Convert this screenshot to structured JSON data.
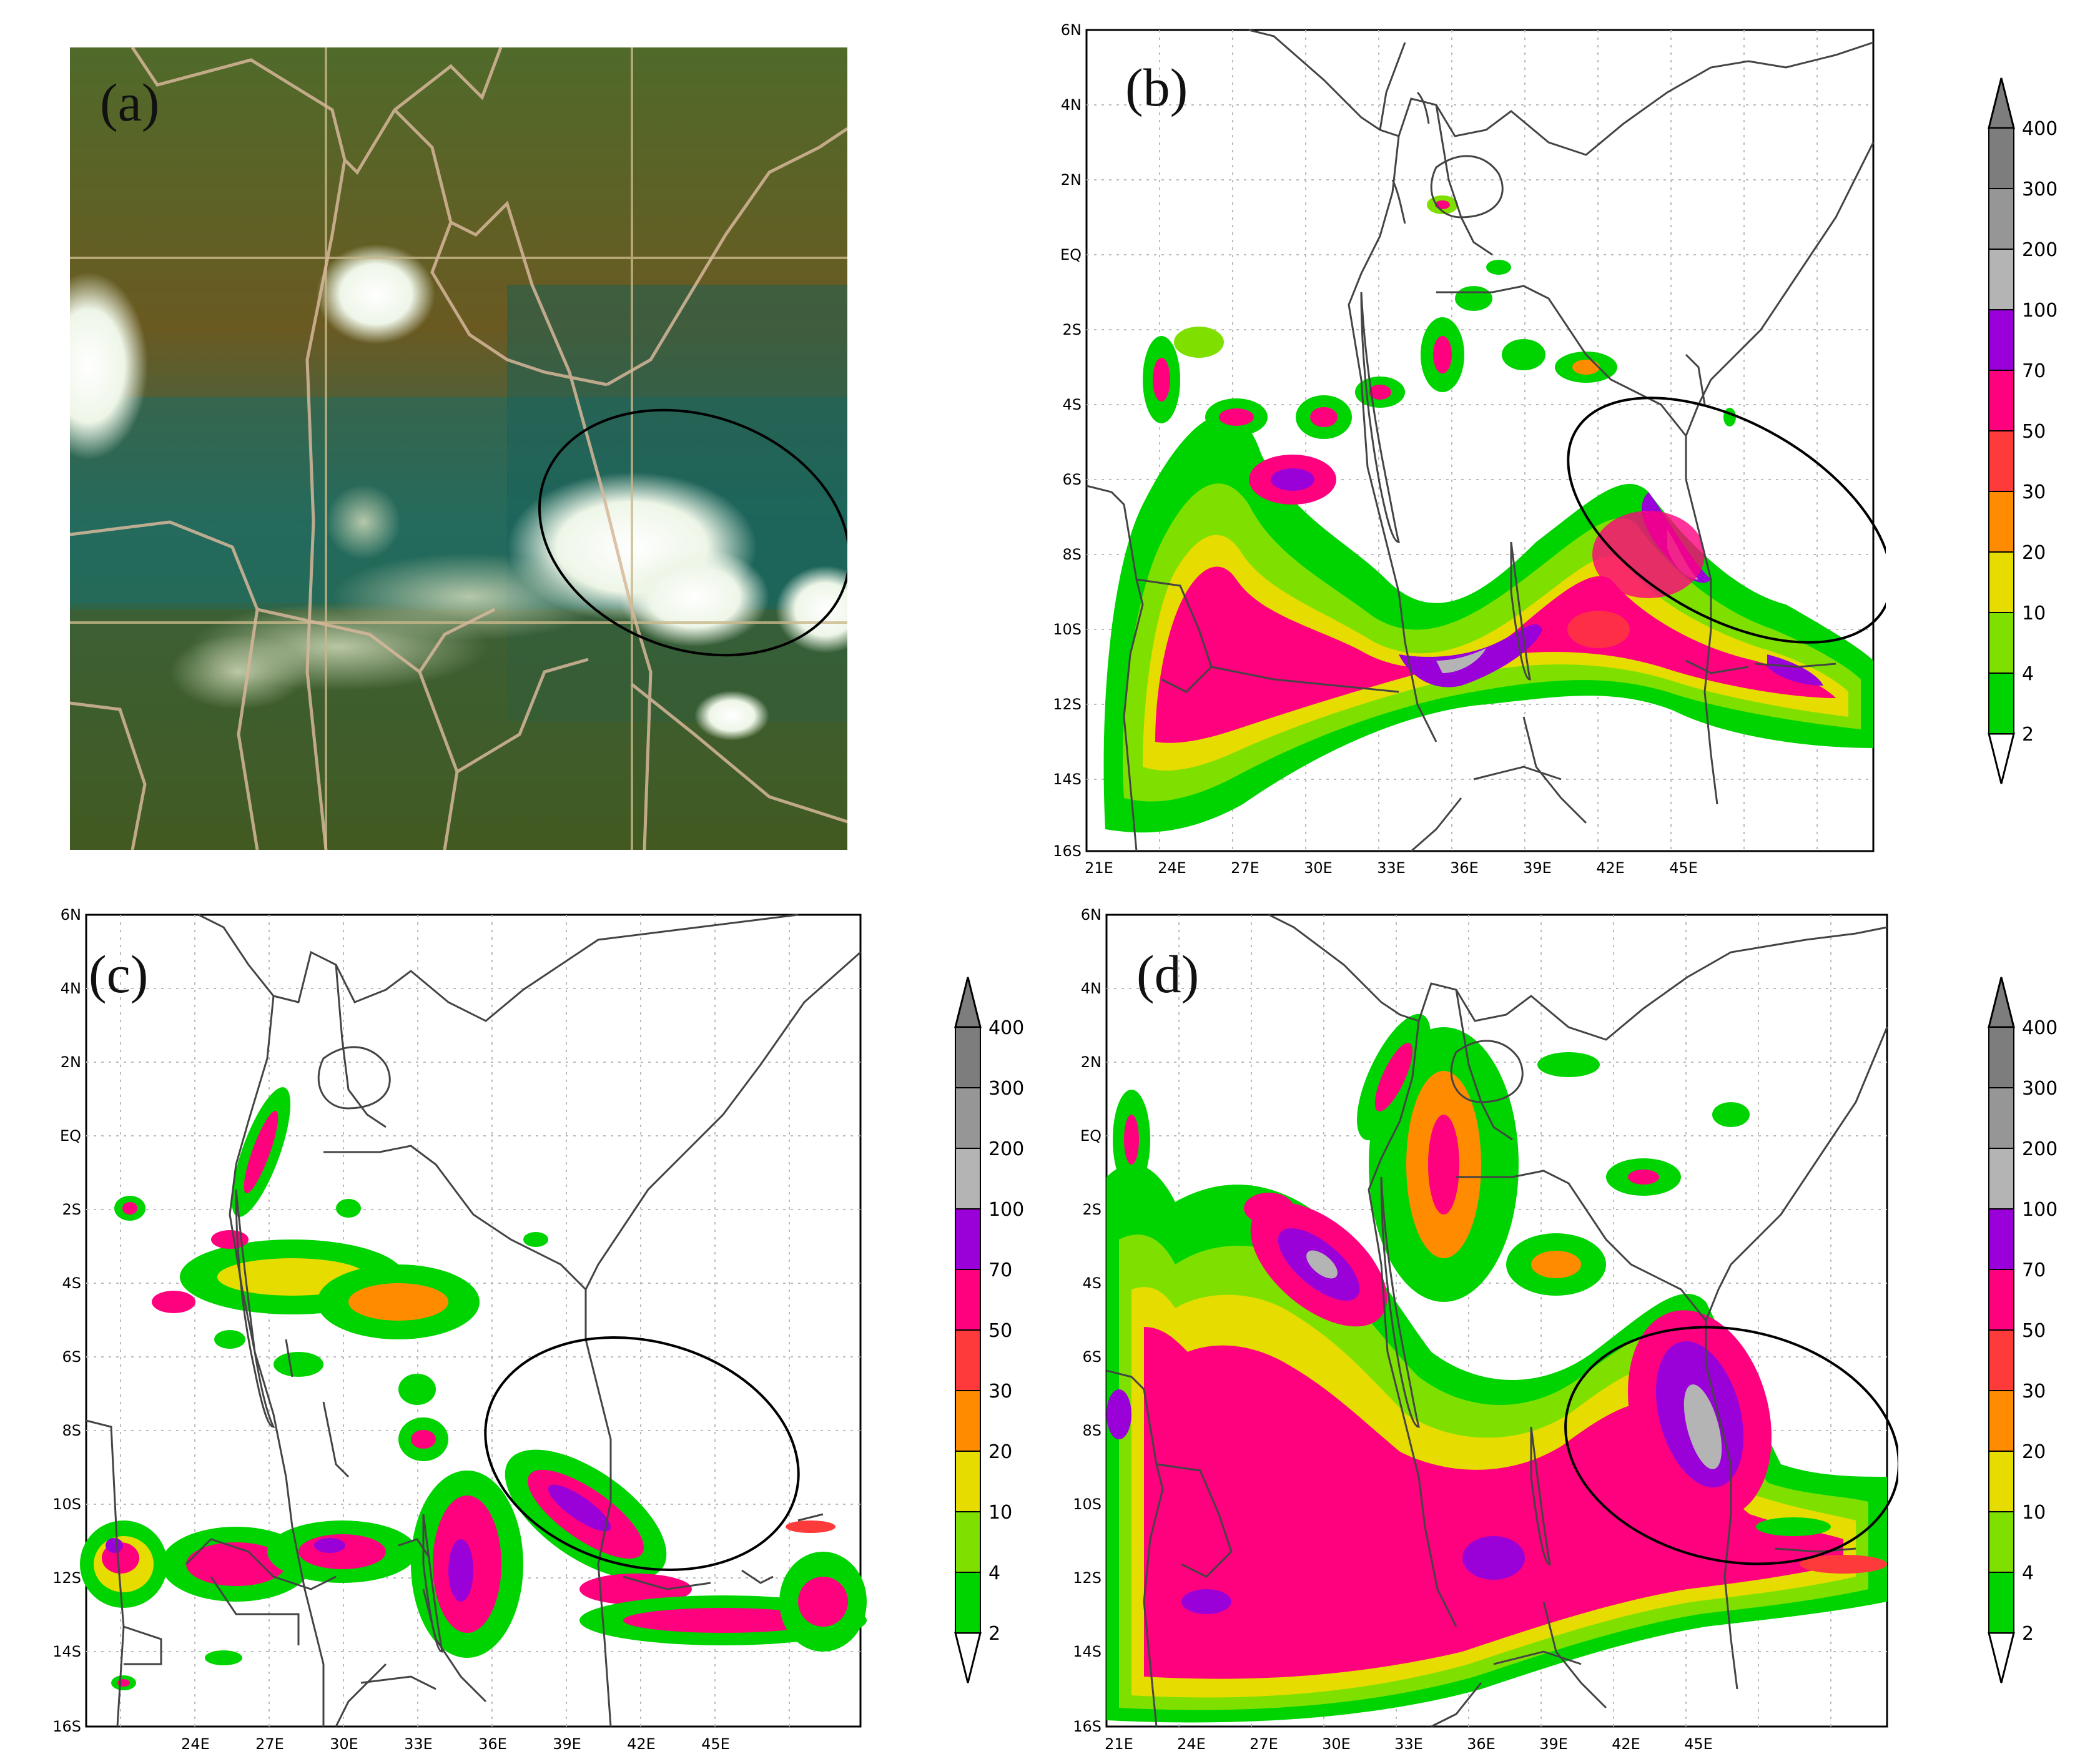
{
  "figure": {
    "panel_labels": [
      "(a)",
      "(b)",
      "(c)",
      "(d)"
    ],
    "colorbar_levels": [
      "2",
      "4",
      "10",
      "20",
      "30",
      "50",
      "70",
      "100",
      "200",
      "300",
      "400"
    ],
    "colorbar_colors": [
      "#00d400",
      "#7fe000",
      "#e6dc00",
      "#ff8c00",
      "#ff3a3a",
      "#ff007f",
      "#9a00d8",
      "#b4b4b4",
      "#969696",
      "#7d7d7d"
    ],
    "lat_labels": [
      "6N",
      "4N",
      "2N",
      "EQ",
      "2S",
      "4S",
      "6S",
      "8S",
      "10S",
      "12S",
      "14S",
      "16S"
    ],
    "lon_labels_b": [
      "21E",
      "24E",
      "27E",
      "30E",
      "33E",
      "36E",
      "39E",
      "42E",
      "45E"
    ],
    "lon_labels_c": [
      "24E",
      "27E",
      "30E",
      "33E",
      "36E",
      "39E",
      "42E",
      "45E"
    ],
    "lon_labels_d": [
      "21E",
      "24E",
      "27E",
      "30E",
      "33E",
      "36E",
      "39E",
      "42E",
      "45E"
    ]
  }
}
